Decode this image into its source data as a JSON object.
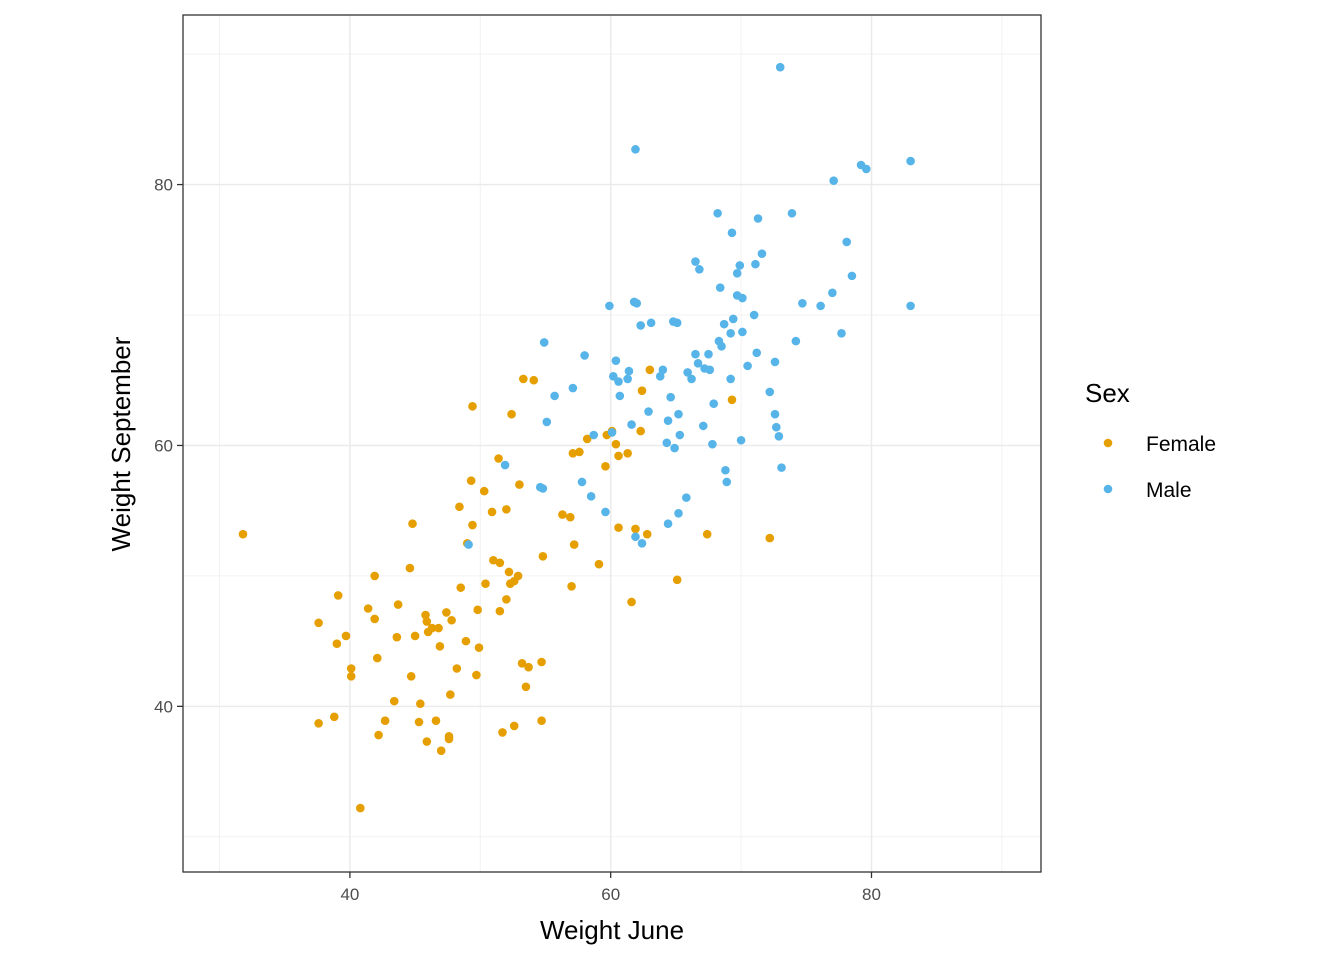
{
  "chart_data": {
    "type": "scatter",
    "title": "",
    "xlabel": "Weight June",
    "ylabel": "Weight September",
    "xlim": [
      27.2,
      93.0
    ],
    "ylim": [
      27.3,
      93.0
    ],
    "x_ticks": [
      40,
      60,
      80
    ],
    "y_ticks": [
      40,
      60,
      80
    ],
    "x_minor": [
      30,
      50,
      70,
      90
    ],
    "y_minor": [
      30,
      50,
      70,
      90
    ],
    "grid": true,
    "legend": {
      "title": "Sex",
      "position": "right"
    },
    "series": [
      {
        "name": "Female",
        "color": "#E69F00",
        "points": [
          [
            31.8,
            53.2
          ],
          [
            37.6,
            46.4
          ],
          [
            37.6,
            38.7
          ],
          [
            38.8,
            39.2
          ],
          [
            39.0,
            44.8
          ],
          [
            39.1,
            48.5
          ],
          [
            39.7,
            45.4
          ],
          [
            40.1,
            42.9
          ],
          [
            40.1,
            42.3
          ],
          [
            40.8,
            32.2
          ],
          [
            41.4,
            47.5
          ],
          [
            41.9,
            50.0
          ],
          [
            41.9,
            46.7
          ],
          [
            42.1,
            43.7
          ],
          [
            42.2,
            37.8
          ],
          [
            42.7,
            38.9
          ],
          [
            43.4,
            40.4
          ],
          [
            43.6,
            45.3
          ],
          [
            43.7,
            47.8
          ],
          [
            44.6,
            50.6
          ],
          [
            44.7,
            42.3
          ],
          [
            44.8,
            54.0
          ],
          [
            45.0,
            45.4
          ],
          [
            45.3,
            38.8
          ],
          [
            45.4,
            40.2
          ],
          [
            45.8,
            47.0
          ],
          [
            45.9,
            46.5
          ],
          [
            45.9,
            37.3
          ],
          [
            46.0,
            45.7
          ],
          [
            46.3,
            46.0
          ],
          [
            46.6,
            38.9
          ],
          [
            46.8,
            46.0
          ],
          [
            46.9,
            44.6
          ],
          [
            47.0,
            36.6
          ],
          [
            47.4,
            47.2
          ],
          [
            47.6,
            37.5
          ],
          [
            47.6,
            37.7
          ],
          [
            47.7,
            40.9
          ],
          [
            47.8,
            46.6
          ],
          [
            48.2,
            42.9
          ],
          [
            48.4,
            55.3
          ],
          [
            48.5,
            49.1
          ],
          [
            48.9,
            45.0
          ],
          [
            49.0,
            52.5
          ],
          [
            49.3,
            57.3
          ],
          [
            49.4,
            53.9
          ],
          [
            49.4,
            63.0
          ],
          [
            49.7,
            42.4
          ],
          [
            49.8,
            47.4
          ],
          [
            49.9,
            44.5
          ],
          [
            50.3,
            56.5
          ],
          [
            50.4,
            49.4
          ],
          [
            50.9,
            54.9
          ],
          [
            51.0,
            51.2
          ],
          [
            51.4,
            59.0
          ],
          [
            51.5,
            51.0
          ],
          [
            51.5,
            47.3
          ],
          [
            51.7,
            38.0
          ],
          [
            52.0,
            55.1
          ],
          [
            52.0,
            48.2
          ],
          [
            52.2,
            50.3
          ],
          [
            52.3,
            49.4
          ],
          [
            52.4,
            62.4
          ],
          [
            52.6,
            49.6
          ],
          [
            52.6,
            38.5
          ],
          [
            52.9,
            50.0
          ],
          [
            53.0,
            57.0
          ],
          [
            53.2,
            43.3
          ],
          [
            53.3,
            65.1
          ],
          [
            53.5,
            41.5
          ],
          [
            53.7,
            43.0
          ],
          [
            54.1,
            65.0
          ],
          [
            54.7,
            43.4
          ],
          [
            54.7,
            38.9
          ],
          [
            54.8,
            51.5
          ],
          [
            56.3,
            54.7
          ],
          [
            56.9,
            54.5
          ],
          [
            57.0,
            49.2
          ],
          [
            57.1,
            59.4
          ],
          [
            57.2,
            52.4
          ],
          [
            57.6,
            59.5
          ],
          [
            58.2,
            60.5
          ],
          [
            59.1,
            50.9
          ],
          [
            59.6,
            58.4
          ],
          [
            59.7,
            60.8
          ],
          [
            60.1,
            61.1
          ],
          [
            60.4,
            60.1
          ],
          [
            60.6,
            53.7
          ],
          [
            60.6,
            59.2
          ],
          [
            61.3,
            59.4
          ],
          [
            61.6,
            48.0
          ],
          [
            61.9,
            53.6
          ],
          [
            62.3,
            61.1
          ],
          [
            62.4,
            64.2
          ],
          [
            62.8,
            53.2
          ],
          [
            63.0,
            65.8
          ],
          [
            65.1,
            49.7
          ],
          [
            67.4,
            53.2
          ],
          [
            69.3,
            63.5
          ],
          [
            72.2,
            52.9
          ]
        ]
      },
      {
        "name": "Male",
        "color": "#56B4E9",
        "points": [
          [
            49.1,
            52.4
          ],
          [
            51.9,
            58.5
          ],
          [
            54.6,
            56.8
          ],
          [
            54.8,
            56.7
          ],
          [
            54.9,
            67.9
          ],
          [
            55.1,
            61.8
          ],
          [
            55.7,
            63.8
          ],
          [
            57.1,
            64.4
          ],
          [
            57.8,
            57.2
          ],
          [
            58.0,
            66.9
          ],
          [
            58.5,
            56.1
          ],
          [
            58.7,
            60.8
          ],
          [
            59.6,
            54.9
          ],
          [
            59.9,
            70.7
          ],
          [
            60.1,
            61.0
          ],
          [
            60.2,
            65.3
          ],
          [
            60.4,
            66.5
          ],
          [
            60.6,
            64.9
          ],
          [
            60.7,
            63.8
          ],
          [
            61.3,
            65.1
          ],
          [
            61.4,
            65.7
          ],
          [
            61.6,
            61.6
          ],
          [
            61.8,
            71.0
          ],
          [
            61.9,
            53.0
          ],
          [
            61.9,
            82.7
          ],
          [
            62.0,
            70.9
          ],
          [
            62.3,
            69.2
          ],
          [
            62.4,
            52.5
          ],
          [
            62.9,
            62.6
          ],
          [
            63.1,
            69.4
          ],
          [
            63.8,
            65.3
          ],
          [
            64.0,
            65.8
          ],
          [
            64.3,
            60.2
          ],
          [
            64.4,
            61.9
          ],
          [
            64.4,
            54.0
          ],
          [
            64.6,
            63.7
          ],
          [
            64.8,
            69.5
          ],
          [
            64.9,
            59.8
          ],
          [
            65.1,
            69.4
          ],
          [
            65.2,
            62.4
          ],
          [
            65.2,
            54.8
          ],
          [
            65.3,
            60.8
          ],
          [
            65.8,
            56.0
          ],
          [
            65.9,
            65.6
          ],
          [
            66.2,
            65.1
          ],
          [
            66.5,
            67.0
          ],
          [
            66.5,
            74.1
          ],
          [
            66.7,
            66.3
          ],
          [
            66.8,
            73.5
          ],
          [
            67.1,
            61.5
          ],
          [
            67.2,
            65.9
          ],
          [
            67.5,
            67.0
          ],
          [
            67.6,
            65.8
          ],
          [
            67.8,
            60.1
          ],
          [
            67.9,
            63.2
          ],
          [
            68.2,
            77.8
          ],
          [
            68.3,
            68.0
          ],
          [
            68.4,
            72.1
          ],
          [
            68.5,
            67.6
          ],
          [
            68.7,
            69.3
          ],
          [
            68.8,
            58.1
          ],
          [
            68.9,
            57.2
          ],
          [
            69.2,
            68.6
          ],
          [
            69.2,
            65.1
          ],
          [
            69.3,
            76.3
          ],
          [
            69.4,
            69.7
          ],
          [
            69.7,
            71.5
          ],
          [
            69.7,
            73.2
          ],
          [
            69.9,
            73.8
          ],
          [
            70.0,
            60.4
          ],
          [
            70.1,
            68.7
          ],
          [
            70.1,
            71.3
          ],
          [
            70.5,
            66.1
          ],
          [
            71.0,
            70.0
          ],
          [
            71.1,
            73.9
          ],
          [
            71.2,
            67.1
          ],
          [
            71.3,
            77.4
          ],
          [
            71.6,
            74.7
          ],
          [
            72.2,
            64.1
          ],
          [
            72.6,
            62.4
          ],
          [
            72.6,
            66.4
          ],
          [
            72.7,
            61.4
          ],
          [
            72.9,
            60.7
          ],
          [
            73.0,
            89.0
          ],
          [
            73.1,
            58.3
          ],
          [
            73.9,
            77.8
          ],
          [
            74.2,
            68.0
          ],
          [
            74.7,
            70.9
          ],
          [
            76.1,
            70.7
          ],
          [
            77.0,
            71.7
          ],
          [
            77.1,
            80.3
          ],
          [
            77.7,
            68.6
          ],
          [
            78.1,
            75.6
          ],
          [
            78.5,
            73.0
          ],
          [
            79.2,
            81.5
          ],
          [
            79.6,
            81.2
          ],
          [
            83.0,
            81.8
          ],
          [
            83.0,
            70.7
          ]
        ]
      }
    ]
  }
}
